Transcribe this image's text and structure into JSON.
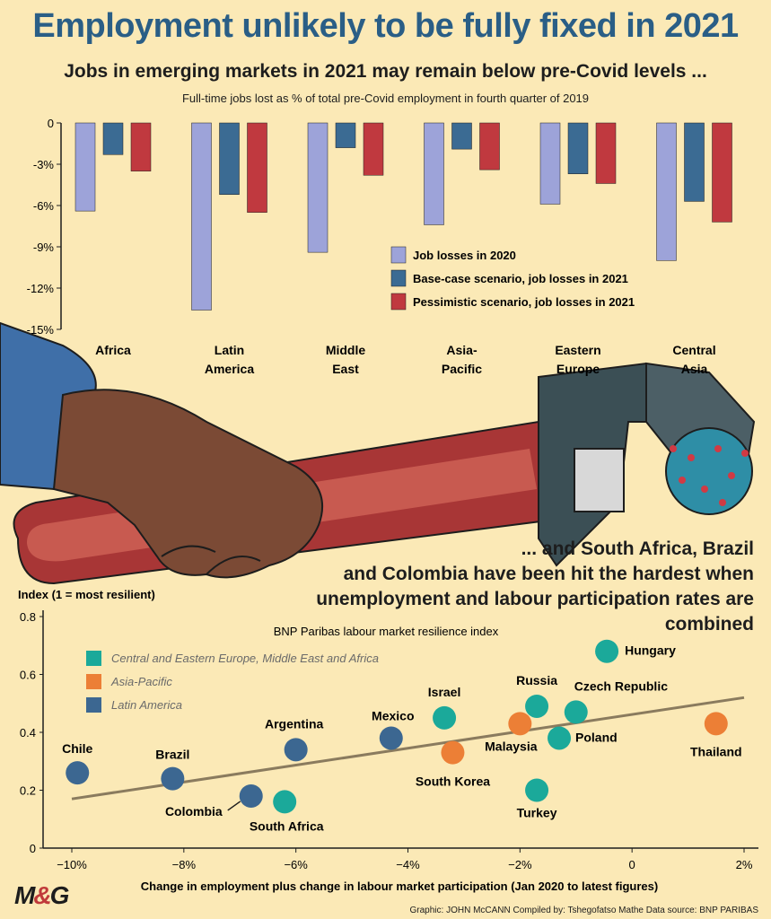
{
  "title": "Employment unlikely to be fully fixed in 2021",
  "subtitle_top": "Jobs in emerging markets in 2021 may remain below pre-Covid levels ...",
  "subtitle_top_note": "Full-time jobs lost as % of total pre-Covid employment in fourth quarter of 2019",
  "subtitle_bottom_lines": [
    "... and South Africa, Brazil",
    "and Colombia have been hit the hardest when",
    "unemployment and labour participation rates are combined"
  ],
  "footer": "Graphic: JOHN McCANN  Compiled by: Tshegofatso Mathe  Data source: BNP PARIBAS",
  "logo": {
    "left": "M",
    "amp": "&",
    "right": "G"
  },
  "colors": {
    "title": "#2a5e86",
    "background": "#fbe9b6",
    "s2020": "#9da3d9",
    "base": "#3b6b93",
    "pessimistic": "#c0393f",
    "cee": "#1ba99a",
    "asia": "#ec7f36",
    "latam": "#3c6791",
    "trend": "#8a7b5e"
  },
  "chart_data": [
    {
      "type": "bar",
      "categories": [
        [
          "Africa"
        ],
        [
          "Latin",
          "America"
        ],
        [
          "Middle",
          "East"
        ],
        [
          "Asia-",
          "Pacific"
        ],
        [
          "Eastern",
          "Europe"
        ],
        [
          "Central",
          "Asia"
        ]
      ],
      "series": [
        {
          "name": "Job losses in 2020",
          "values": [
            -6.4,
            -13.6,
            -9.4,
            -7.4,
            -5.9,
            -10.0
          ]
        },
        {
          "name": "Base-case scenario, job losses in 2021",
          "values": [
            -2.3,
            -5.2,
            -1.8,
            -1.9,
            -3.7,
            -5.7
          ]
        },
        {
          "name": "Pessimistic scenario, job losses in 2021",
          "values": [
            -3.5,
            -6.5,
            -3.8,
            -3.4,
            -4.4,
            -7.2
          ]
        }
      ],
      "yticks": [
        "0",
        "-3%",
        "-6%",
        "-9%",
        "-12%",
        "-15%"
      ],
      "ylim": [
        -15,
        0
      ],
      "legend_position": "right"
    },
    {
      "type": "scatter",
      "title": "BNP Paribas labour market resilience index",
      "ylabel": "Index (1 = most resilient)",
      "xlabel": "Change in employment plus change in labour market participation (Jan 2020 to latest figures)",
      "xlim": [
        -10.5,
        2
      ],
      "ylim": [
        0,
        0.8
      ],
      "xticks": [
        "−10%",
        "−8%",
        "−6%",
        "−4%",
        "−2%",
        "0",
        "2%"
      ],
      "yticks": [
        "0",
        "0.2",
        "0.4",
        "0.6",
        "0.8"
      ],
      "groups": [
        {
          "name": "Central and Eastern Europe, Middle East and Africa",
          "color": "#1ba99a"
        },
        {
          "name": "Asia-Pacific",
          "color": "#ec7f36"
        },
        {
          "name": "Latin America",
          "color": "#3c6791"
        }
      ],
      "points": [
        {
          "label": "Chile",
          "x": -9.9,
          "y": 0.26,
          "group": 2
        },
        {
          "label": "Brazil",
          "x": -8.2,
          "y": 0.24,
          "group": 2
        },
        {
          "label": "Colombia",
          "x": -6.8,
          "y": 0.18,
          "group": 2
        },
        {
          "label": "South Africa",
          "x": -6.2,
          "y": 0.16,
          "group": 0
        },
        {
          "label": "Argentina",
          "x": -6.0,
          "y": 0.34,
          "group": 2
        },
        {
          "label": "Mexico",
          "x": -4.3,
          "y": 0.38,
          "group": 2
        },
        {
          "label": "Israel",
          "x": -3.35,
          "y": 0.45,
          "group": 0
        },
        {
          "label": "South Korea",
          "x": -3.2,
          "y": 0.33,
          "group": 1
        },
        {
          "label": "Malaysia",
          "x": -2.0,
          "y": 0.43,
          "group": 1
        },
        {
          "label": "Russia",
          "x": -1.7,
          "y": 0.49,
          "group": 0
        },
        {
          "label": "Turkey",
          "x": -1.7,
          "y": 0.2,
          "group": 0
        },
        {
          "label": "Poland",
          "x": -1.3,
          "y": 0.38,
          "group": 0
        },
        {
          "label": "Czech Republic",
          "x": -1.0,
          "y": 0.47,
          "group": 0
        },
        {
          "label": "Hungary",
          "x": -0.45,
          "y": 0.68,
          "group": 0
        },
        {
          "label": "Thailand",
          "x": 1.5,
          "y": 0.43,
          "group": 1
        }
      ],
      "trendline": [
        [
          -10,
          0.17
        ],
        [
          2,
          0.52
        ]
      ]
    }
  ]
}
